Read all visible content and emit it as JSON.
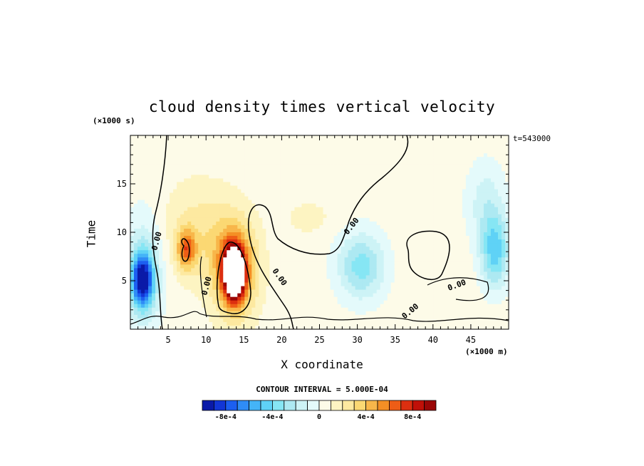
{
  "chart_data": {
    "type": "heatmap",
    "title": "cloud density times vertical velocity",
    "xlabel": "X coordinate",
    "ylabel": "Time",
    "x_unit_label": "(×1000 m)",
    "y_unit_label": "(×1000 s)",
    "timestamp": "t=543000",
    "contour_interval_label": "CONTOUR INTERVAL = 5.000E-04",
    "xlim": [
      0,
      50
    ],
    "ylim": [
      0,
      20
    ],
    "x_ticks": [
      5,
      10,
      15,
      20,
      25,
      30,
      35,
      40,
      45
    ],
    "y_ticks": [
      5,
      10,
      15
    ],
    "zero_contour_label": "0.00",
    "colorbar": {
      "levels": [
        -0.001,
        -0.0009,
        -0.0008,
        -0.0007,
        -0.0006,
        -0.0005,
        -0.0004,
        -0.0003,
        -0.0002,
        -0.0001,
        0,
        0.0001,
        0.0002,
        0.0003,
        0.0004,
        0.0005,
        0.0006,
        0.0007,
        0.0008,
        0.0009
      ],
      "colors": [
        "#0a1aa8",
        "#1236d6",
        "#1c5ff0",
        "#2f8cf6",
        "#44b4f8",
        "#5fd2f6",
        "#86e6f4",
        "#ade9f2",
        "#cdf3f6",
        "#e4fafb",
        "#fdfbe8",
        "#fdf4c2",
        "#fde9a0",
        "#fbd873",
        "#f8b64a",
        "#f48f25",
        "#ee5d16",
        "#dc2f10",
        "#c01008",
        "#9a0606"
      ],
      "tick_labels": [
        "-8e-4",
        "-4e-4",
        "0",
        "4e-4",
        "8e-4"
      ],
      "tick_values": [
        -0.0008,
        -0.0004,
        0,
        0.0004,
        0.0008
      ]
    },
    "features": [
      {
        "x": 1.6,
        "y": 5.0,
        "value": -0.0009,
        "sx": 1.0,
        "sy": 1.9
      },
      {
        "x": 1.8,
        "y": 6.0,
        "value": -0.0003,
        "sx": 1.8,
        "sy": 4.0
      },
      {
        "x": 48.2,
        "y": 8.0,
        "value": -0.0005,
        "sx": 1.3,
        "sy": 2.6
      },
      {
        "x": 47.0,
        "y": 13.0,
        "value": -0.0002,
        "sx": 1.8,
        "sy": 3.0
      },
      {
        "x": 30.5,
        "y": 6.5,
        "value": -0.0004,
        "sx": 2.2,
        "sy": 2.4
      },
      {
        "x": 13.7,
        "y": 5.8,
        "value": 0.0014,
        "sx": 0.9,
        "sy": 1.8
      },
      {
        "x": 13.8,
        "y": 6.2,
        "value": 0.0006,
        "sx": 2.0,
        "sy": 3.4
      },
      {
        "x": 7.4,
        "y": 8.2,
        "value": 0.0005,
        "sx": 0.9,
        "sy": 1.4
      },
      {
        "x": 9.0,
        "y": 10.0,
        "value": 0.0002,
        "sx": 3.2,
        "sy": 3.5
      },
      {
        "x": 23.5,
        "y": 11.5,
        "value": 0.0001,
        "sx": 2.0,
        "sy": 1.2
      }
    ]
  }
}
